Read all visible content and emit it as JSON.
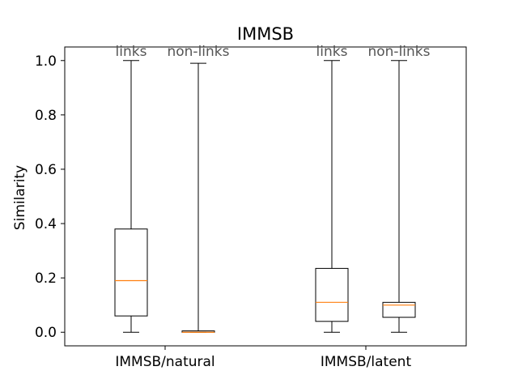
{
  "chart_data": {
    "type": "box",
    "title": "IMMSB",
    "xlabel": "",
    "ylabel": "Similarity",
    "ylim": [
      -0.05,
      1.05
    ],
    "yticks": [
      0.0,
      0.2,
      0.4,
      0.6,
      0.8,
      1.0
    ],
    "ytick_labels": [
      "0.0",
      "0.2",
      "0.4",
      "0.6",
      "0.8",
      "1.0"
    ],
    "grid": false,
    "categories": [
      "IMMSB/natural",
      "IMMSB/latent"
    ],
    "box_annotations": [
      "links",
      "non-links",
      "links",
      "non-links"
    ],
    "boxes": [
      {
        "group": "IMMSB/natural",
        "label": "links",
        "whisker_low": 0.0,
        "q1": 0.06,
        "median": 0.19,
        "q3": 0.38,
        "whisker_high": 1.0
      },
      {
        "group": "IMMSB/natural",
        "label": "non-links",
        "whisker_low": 0.0,
        "q1": 0.0,
        "median": 0.0,
        "q3": 0.005,
        "whisker_high": 0.99
      },
      {
        "group": "IMMSB/latent",
        "label": "links",
        "whisker_low": 0.0,
        "q1": 0.04,
        "median": 0.11,
        "q3": 0.235,
        "whisker_high": 1.0
      },
      {
        "group": "IMMSB/latent",
        "label": "non-links",
        "whisker_low": 0.0,
        "q1": 0.055,
        "median": 0.1,
        "q3": 0.11,
        "whisker_high": 1.0
      }
    ],
    "colors": {
      "box": "#000000",
      "median": "#ff7f0e",
      "annotation": "#555555"
    }
  }
}
